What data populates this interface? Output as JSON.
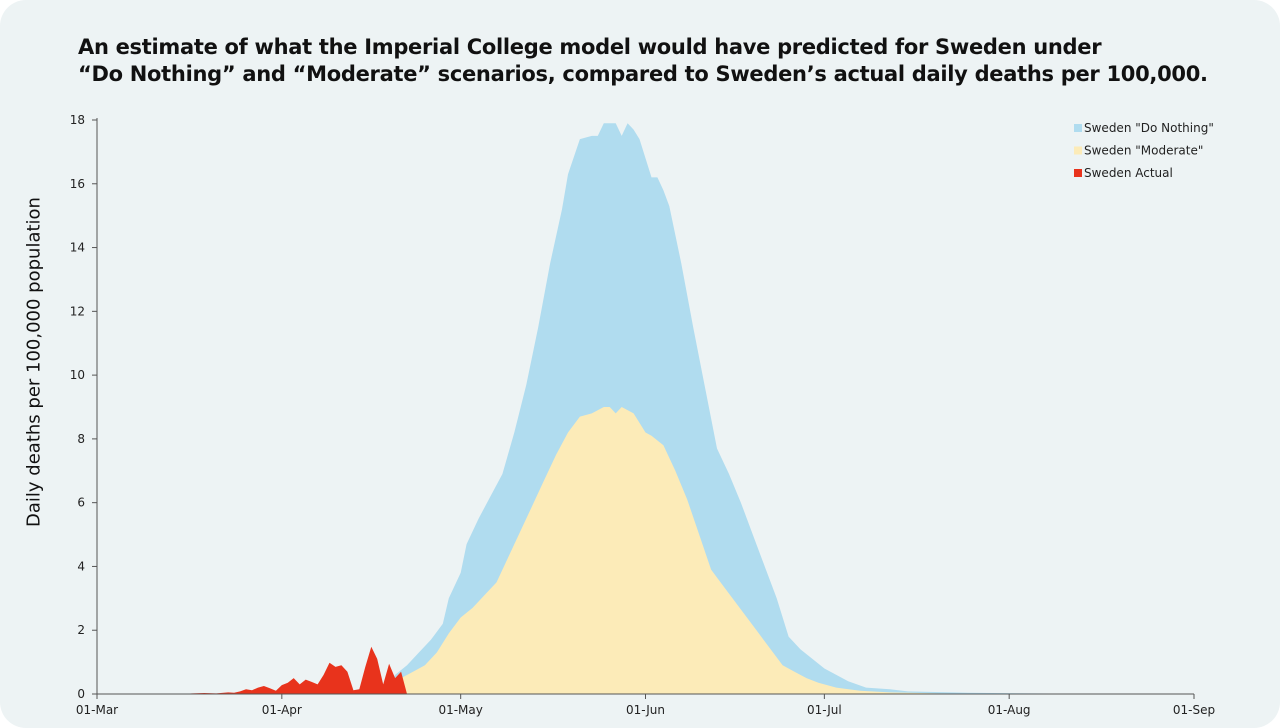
{
  "title_lines": [
    "An estimate of what the Imperial College model would have predicted for Sweden under",
    "“Do Nothing” and “Moderate” scenarios, compared to Sweden’s actual daily deaths per 100,000."
  ],
  "chart_data": {
    "type": "area",
    "ylabel": "Daily deaths per 100,000 population",
    "xlabel": "",
    "ylim": [
      0,
      18
    ],
    "yticks": [
      0,
      2,
      4,
      6,
      8,
      10,
      12,
      14,
      16,
      18
    ],
    "x_axis": {
      "start": "2020-03-01",
      "end": "2020-09-01",
      "ticks": [
        {
          "date": "2020-03-01",
          "label": "01-Mar"
        },
        {
          "date": "2020-04-01",
          "label": "01-Apr"
        },
        {
          "date": "2020-05-01",
          "label": "01-May"
        },
        {
          "date": "2020-06-01",
          "label": "01-Jun"
        },
        {
          "date": "2020-07-01",
          "label": "01-Jul"
        },
        {
          "date": "2020-08-01",
          "label": "01-Aug"
        },
        {
          "date": "2020-09-01",
          "label": "01-Sep"
        }
      ]
    },
    "grid": false,
    "legend_position": "top-right",
    "series": [
      {
        "name": "Sweden \"Do Nothing\"",
        "color": "#b0dcef",
        "points": [
          [
            "2020-04-19",
            0.3
          ],
          [
            "2020-04-20",
            0.6
          ],
          [
            "2020-04-22",
            0.9
          ],
          [
            "2020-04-24",
            1.3
          ],
          [
            "2020-04-26",
            1.7
          ],
          [
            "2020-04-28",
            2.2
          ],
          [
            "2020-04-29",
            3.0
          ],
          [
            "2020-05-01",
            3.8
          ],
          [
            "2020-05-02",
            4.7
          ],
          [
            "2020-05-04",
            5.5
          ],
          [
            "2020-05-06",
            6.2
          ],
          [
            "2020-05-08",
            6.9
          ],
          [
            "2020-05-10",
            8.2
          ],
          [
            "2020-05-12",
            9.7
          ],
          [
            "2020-05-14",
            11.5
          ],
          [
            "2020-05-16",
            13.5
          ],
          [
            "2020-05-18",
            15.2
          ],
          [
            "2020-05-19",
            16.3
          ],
          [
            "2020-05-21",
            17.4
          ],
          [
            "2020-05-23",
            17.5
          ],
          [
            "2020-05-24",
            17.5
          ],
          [
            "2020-05-25",
            17.9
          ],
          [
            "2020-05-26",
            17.9
          ],
          [
            "2020-05-27",
            17.9
          ],
          [
            "2020-05-28",
            17.5
          ],
          [
            "2020-05-29",
            17.9
          ],
          [
            "2020-05-30",
            17.7
          ],
          [
            "2020-05-31",
            17.4
          ],
          [
            "2020-06-01",
            16.8
          ],
          [
            "2020-06-02",
            16.2
          ],
          [
            "2020-06-03",
            16.2
          ],
          [
            "2020-06-04",
            15.8
          ],
          [
            "2020-06-05",
            15.3
          ],
          [
            "2020-06-07",
            13.5
          ],
          [
            "2020-06-09",
            11.5
          ],
          [
            "2020-06-11",
            9.6
          ],
          [
            "2020-06-13",
            7.7
          ],
          [
            "2020-06-15",
            6.9
          ],
          [
            "2020-06-17",
            6.0
          ],
          [
            "2020-06-19",
            5.0
          ],
          [
            "2020-06-21",
            4.0
          ],
          [
            "2020-06-23",
            3.0
          ],
          [
            "2020-06-25",
            1.8
          ],
          [
            "2020-06-27",
            1.4
          ],
          [
            "2020-06-29",
            1.1
          ],
          [
            "2020-07-01",
            0.8
          ],
          [
            "2020-07-03",
            0.6
          ],
          [
            "2020-07-05",
            0.4
          ],
          [
            "2020-07-08",
            0.2
          ],
          [
            "2020-07-12",
            0.15
          ],
          [
            "2020-07-15",
            0.08
          ],
          [
            "2020-07-25",
            0.04
          ],
          [
            "2020-08-05",
            0.02
          ],
          [
            "2020-08-20",
            0.0
          ]
        ]
      },
      {
        "name": "Sweden \"Moderate\"",
        "color": "#fcebb8",
        "points": [
          [
            "2020-04-19",
            0.3
          ],
          [
            "2020-04-21",
            0.5
          ],
          [
            "2020-04-23",
            0.7
          ],
          [
            "2020-04-25",
            0.9
          ],
          [
            "2020-04-27",
            1.3
          ],
          [
            "2020-04-29",
            1.9
          ],
          [
            "2020-05-01",
            2.4
          ],
          [
            "2020-05-03",
            2.7
          ],
          [
            "2020-05-05",
            3.1
          ],
          [
            "2020-05-07",
            3.5
          ],
          [
            "2020-05-09",
            4.3
          ],
          [
            "2020-05-11",
            5.1
          ],
          [
            "2020-05-13",
            5.9
          ],
          [
            "2020-05-15",
            6.7
          ],
          [
            "2020-05-17",
            7.5
          ],
          [
            "2020-05-19",
            8.2
          ],
          [
            "2020-05-21",
            8.7
          ],
          [
            "2020-05-23",
            8.8
          ],
          [
            "2020-05-25",
            9.0
          ],
          [
            "2020-05-26",
            9.0
          ],
          [
            "2020-05-27",
            8.8
          ],
          [
            "2020-05-28",
            9.0
          ],
          [
            "2020-05-30",
            8.8
          ],
          [
            "2020-06-01",
            8.2
          ],
          [
            "2020-06-02",
            8.1
          ],
          [
            "2020-06-04",
            7.8
          ],
          [
            "2020-06-06",
            7.0
          ],
          [
            "2020-06-08",
            6.1
          ],
          [
            "2020-06-10",
            5.0
          ],
          [
            "2020-06-12",
            3.9
          ],
          [
            "2020-06-14",
            3.4
          ],
          [
            "2020-06-16",
            2.9
          ],
          [
            "2020-06-18",
            2.4
          ],
          [
            "2020-06-20",
            1.9
          ],
          [
            "2020-06-22",
            1.4
          ],
          [
            "2020-06-24",
            0.9
          ],
          [
            "2020-06-26",
            0.7
          ],
          [
            "2020-06-28",
            0.5
          ],
          [
            "2020-06-30",
            0.35
          ],
          [
            "2020-07-03",
            0.2
          ],
          [
            "2020-07-07",
            0.1
          ],
          [
            "2020-07-12",
            0.05
          ],
          [
            "2020-07-20",
            0.02
          ],
          [
            "2020-08-01",
            0.0
          ]
        ]
      },
      {
        "name": "Sweden Actual",
        "color": "#e8331c",
        "points": [
          [
            "2020-03-15",
            0.0
          ],
          [
            "2020-03-17",
            0.02
          ],
          [
            "2020-03-19",
            0.03
          ],
          [
            "2020-03-21",
            0.02
          ],
          [
            "2020-03-23",
            0.05
          ],
          [
            "2020-03-24",
            0.04
          ],
          [
            "2020-03-25",
            0.08
          ],
          [
            "2020-03-26",
            0.15
          ],
          [
            "2020-03-27",
            0.12
          ],
          [
            "2020-03-28",
            0.2
          ],
          [
            "2020-03-29",
            0.25
          ],
          [
            "2020-03-30",
            0.18
          ],
          [
            "2020-03-31",
            0.1
          ],
          [
            "2020-04-01",
            0.28
          ],
          [
            "2020-04-02",
            0.35
          ],
          [
            "2020-04-03",
            0.5
          ],
          [
            "2020-04-04",
            0.3
          ],
          [
            "2020-04-05",
            0.45
          ],
          [
            "2020-04-06",
            0.38
          ],
          [
            "2020-04-07",
            0.3
          ],
          [
            "2020-04-08",
            0.6
          ],
          [
            "2020-04-09",
            0.98
          ],
          [
            "2020-04-10",
            0.85
          ],
          [
            "2020-04-11",
            0.9
          ],
          [
            "2020-04-12",
            0.7
          ],
          [
            "2020-04-13",
            0.12
          ],
          [
            "2020-04-14",
            0.15
          ],
          [
            "2020-04-15",
            0.85
          ],
          [
            "2020-04-16",
            1.48
          ],
          [
            "2020-04-17",
            1.1
          ],
          [
            "2020-04-18",
            0.3
          ],
          [
            "2020-04-19",
            0.95
          ],
          [
            "2020-04-20",
            0.5
          ],
          [
            "2020-04-21",
            0.7
          ],
          [
            "2020-04-22",
            0.0
          ]
        ]
      }
    ]
  }
}
